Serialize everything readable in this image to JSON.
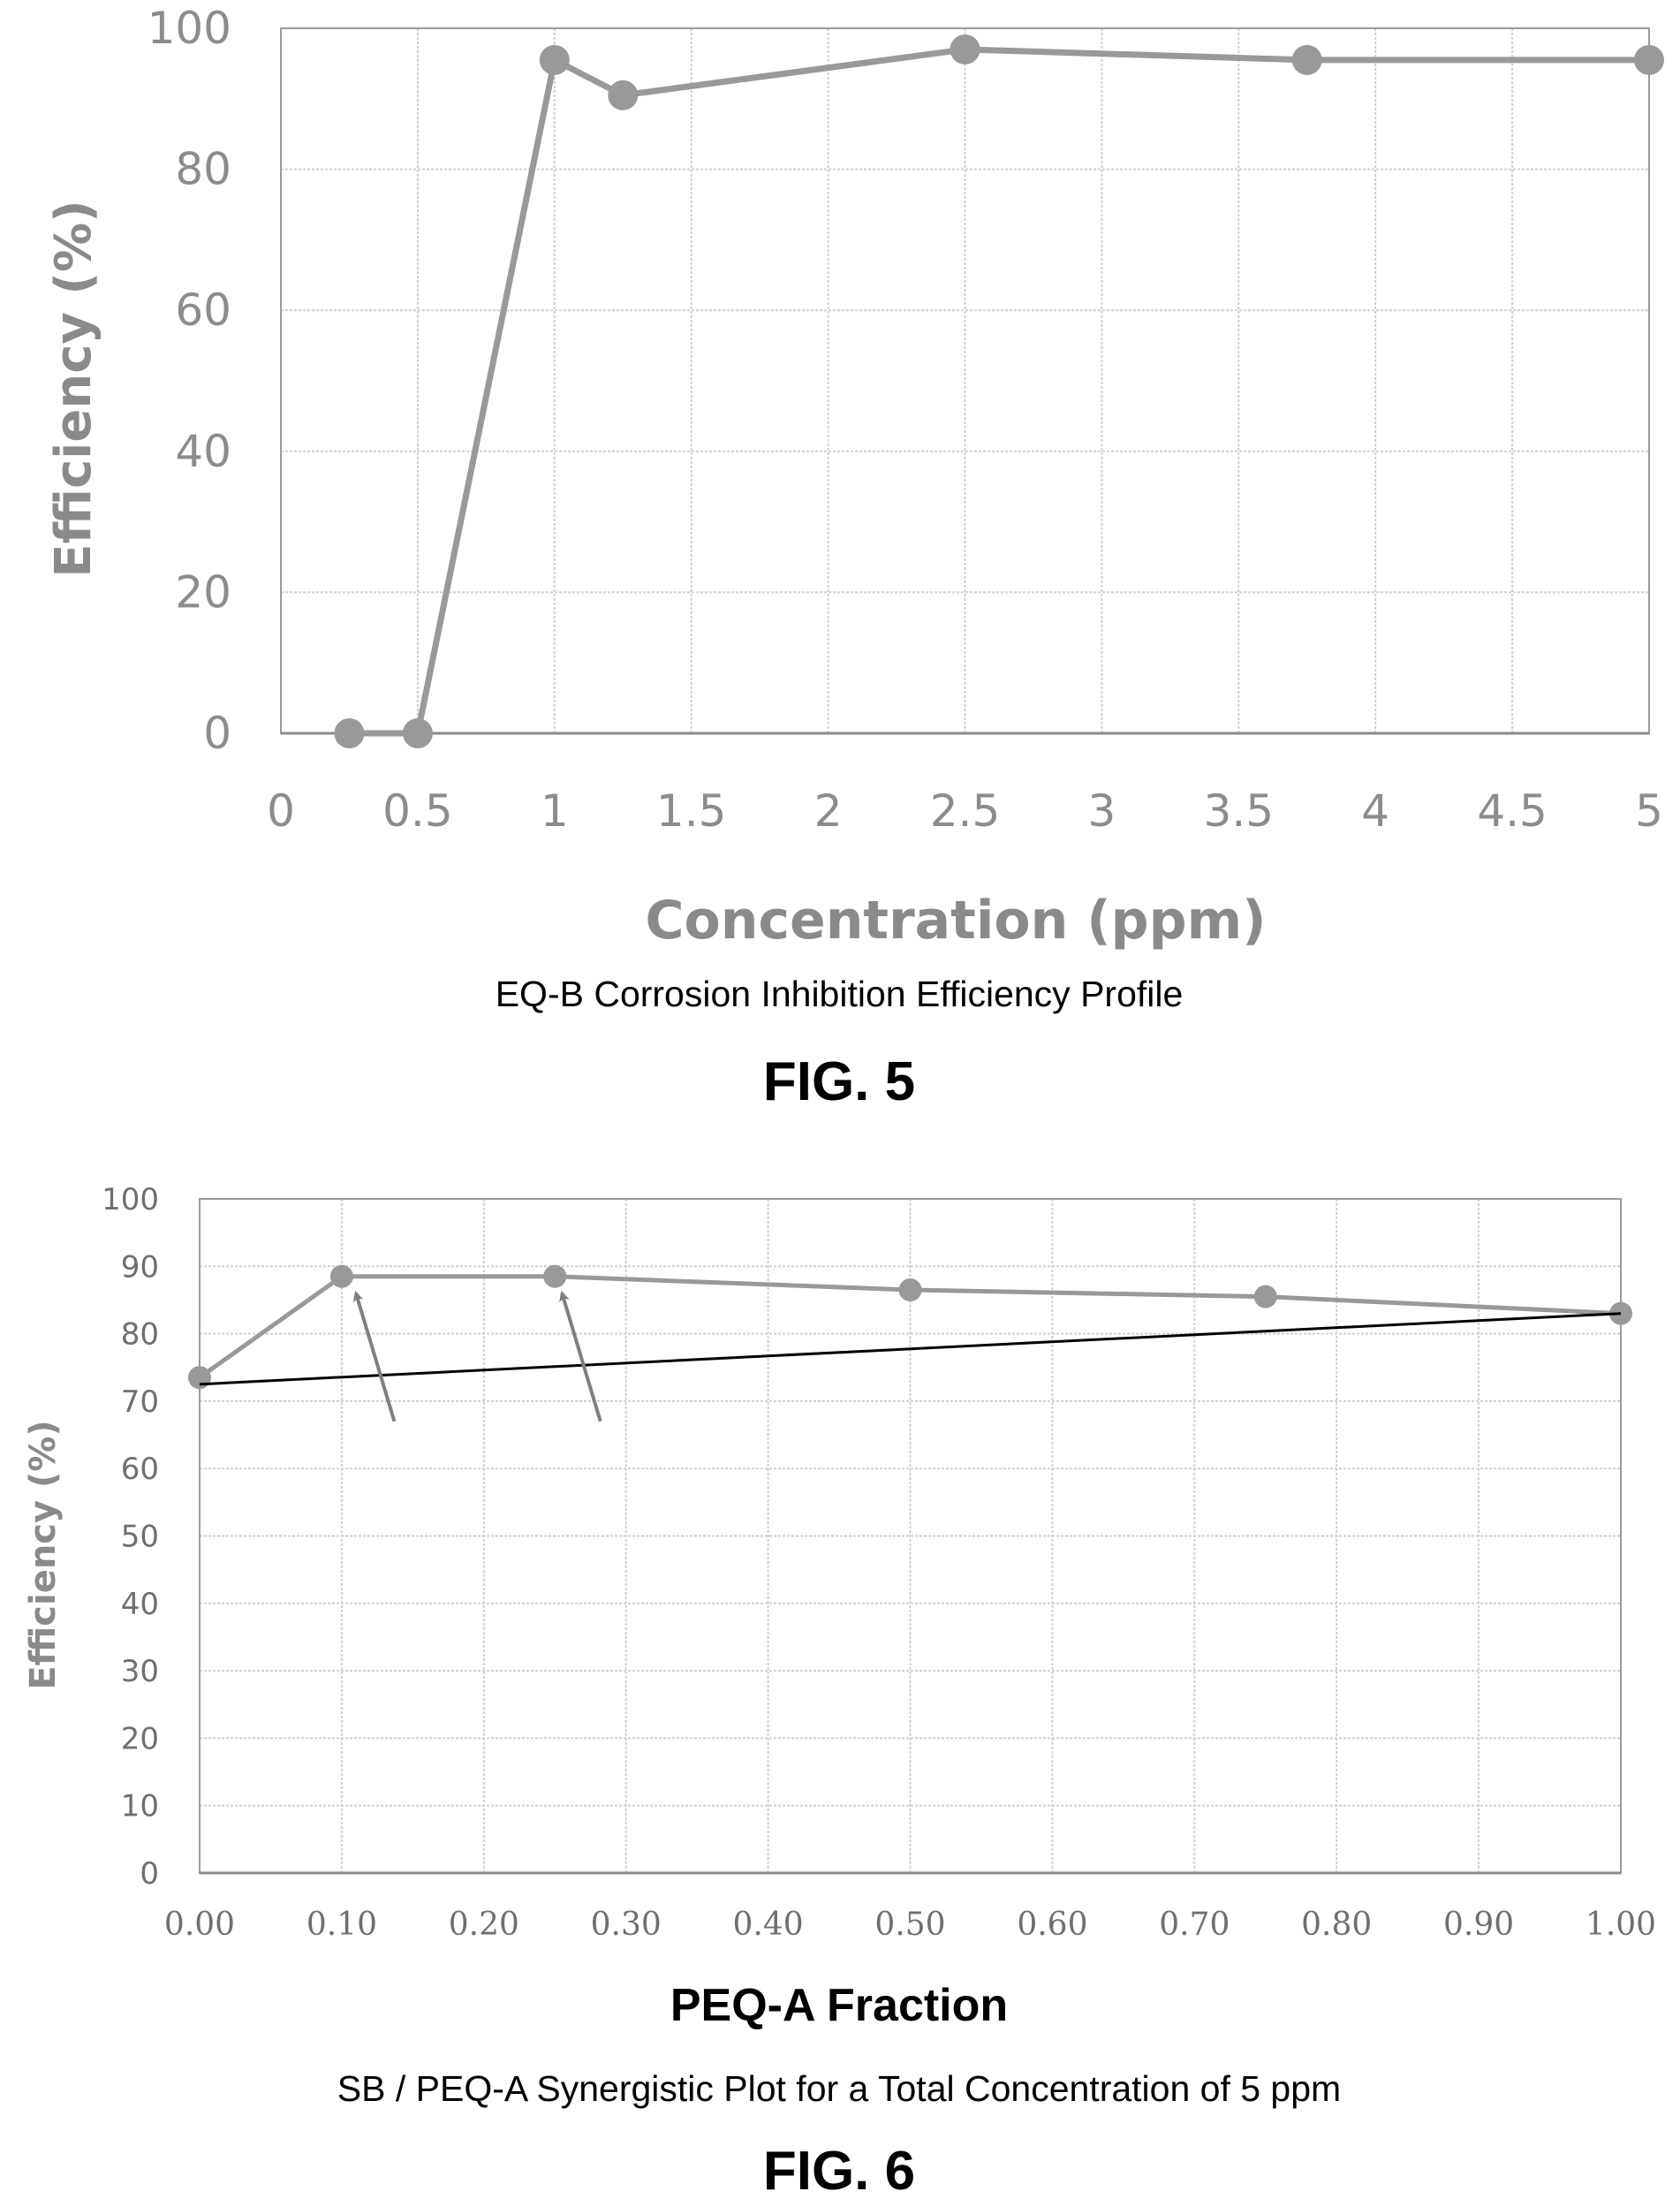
{
  "chart_data": [
    {
      "type": "line",
      "xlabel": "Concentration (ppm)",
      "ylabel": "Efficiency (%)",
      "caption": "EQ-B Corrosion Inhibition Efficiency Profile",
      "figure_label": "FIG. 5",
      "xlim": [
        0,
        5
      ],
      "ylim": [
        0,
        100
      ],
      "xticks": [
        0,
        0.5,
        1,
        1.5,
        2,
        2.5,
        3,
        3.5,
        4,
        4.5,
        5
      ],
      "xtick_labels": [
        "0",
        "0.5",
        "1",
        "1.5",
        "2",
        "2.5",
        "3",
        "3.5",
        "4",
        "4.5",
        "5"
      ],
      "yticks": [
        0,
        20,
        40,
        60,
        80,
        100
      ],
      "ytick_labels": [
        "0",
        "20",
        "40",
        "60",
        "80",
        "100"
      ],
      "grid": true,
      "series": [
        {
          "x": [
            0.25,
            0.5,
            1.0,
            1.25,
            2.5,
            3.75,
            5.0
          ],
          "y": [
            0,
            0,
            95.5,
            90.5,
            97,
            95.5,
            95.5
          ],
          "color": "#999999",
          "marker": "circle"
        }
      ]
    },
    {
      "type": "line",
      "xlabel": "PEQ-A Fraction",
      "ylabel": "Efficiency (%)",
      "caption": "SB / PEQ-A Synergistic Plot for a Total Concentration of 5 ppm",
      "figure_label": "FIG. 6",
      "xlim": [
        0,
        1
      ],
      "ylim": [
        0,
        100
      ],
      "xticks": [
        0,
        0.1,
        0.2,
        0.3,
        0.4,
        0.5,
        0.6,
        0.7,
        0.8,
        0.9,
        1.0
      ],
      "xtick_labels": [
        "0.00",
        "0.10",
        "0.20",
        "0.30",
        "0.40",
        "0.50",
        "0.60",
        "0.70",
        "0.80",
        "0.90",
        "1.00"
      ],
      "yticks": [
        0,
        10,
        20,
        30,
        40,
        50,
        60,
        70,
        80,
        90,
        100
      ],
      "ytick_labels": [
        "0",
        "10",
        "20",
        "30",
        "40",
        "50",
        "60",
        "70",
        "80",
        "90",
        "100"
      ],
      "grid": true,
      "series": [
        {
          "x": [
            0,
            0.1,
            0.25,
            0.5,
            0.75,
            1.0
          ],
          "y": [
            73.5,
            88.5,
            88.5,
            86.5,
            85.5,
            83
          ],
          "color": "#999999",
          "marker": "circle"
        },
        {
          "x": [
            0,
            1.0
          ],
          "y": [
            72.5,
            83
          ],
          "color": "#000000",
          "marker": "none"
        }
      ],
      "annotations": [
        {
          "type": "arrow",
          "from": [
            0.137,
            67
          ],
          "to": [
            0.11,
            86
          ]
        },
        {
          "type": "arrow",
          "from": [
            0.282,
            67
          ],
          "to": [
            0.255,
            86
          ]
        }
      ]
    }
  ]
}
